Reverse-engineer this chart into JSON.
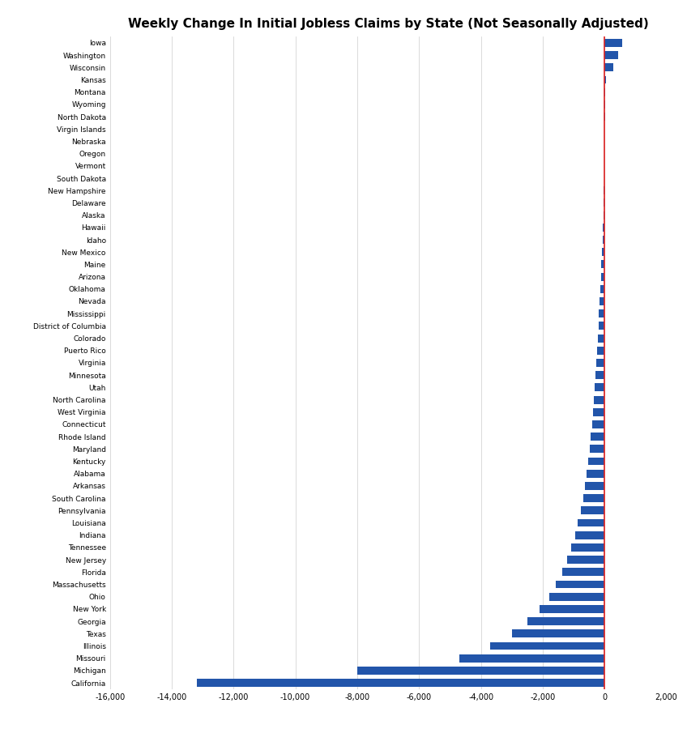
{
  "title": "Weekly Change In Initial Jobless Claims by State (Not Seasonally Adjusted)",
  "states": [
    "Iowa",
    "Washington",
    "Wisconsin",
    "Kansas",
    "Montana",
    "Wyoming",
    "North Dakota",
    "Virgin Islands",
    "Nebraska",
    "Oregon",
    "Vermont",
    "South Dakota",
    "New Hampshire",
    "Delaware",
    "Alaska",
    "Hawaii",
    "Idaho",
    "New Mexico",
    "Maine",
    "Arizona",
    "Oklahoma",
    "Nevada",
    "Mississippi",
    "District of Columbia",
    "Colorado",
    "Puerto Rico",
    "Virginia",
    "Minnesota",
    "Utah",
    "North Carolina",
    "West Virginia",
    "Connecticut",
    "Rhode Island",
    "Maryland",
    "Kentucky",
    "Alabama",
    "Arkansas",
    "South Carolina",
    "Pennsylvania",
    "Louisiana",
    "Indiana",
    "Tennessee",
    "New Jersey",
    "Florida",
    "Massachusetts",
    "Ohio",
    "New York",
    "Georgia",
    "Texas",
    "Illinois",
    "Missouri",
    "Michigan",
    "California"
  ],
  "values": [
    580,
    430,
    290,
    40,
    18,
    12,
    8,
    5,
    3,
    2,
    1,
    -10,
    -20,
    -30,
    -40,
    -55,
    -70,
    -85,
    -100,
    -120,
    -140,
    -160,
    -180,
    -200,
    -225,
    -250,
    -270,
    -295,
    -320,
    -350,
    -380,
    -410,
    -445,
    -485,
    -530,
    -580,
    -635,
    -700,
    -775,
    -860,
    -960,
    -1070,
    -1200,
    -1380,
    -1570,
    -1800,
    -2100,
    -2500,
    -3000,
    -3700,
    -4700,
    -8000,
    -13200
  ],
  "bar_color": "#2255aa",
  "vline_color": "#dd2222",
  "xlim": [
    -16000,
    2000
  ],
  "xticks": [
    -16000,
    -14000,
    -12000,
    -10000,
    -8000,
    -6000,
    -4000,
    -2000,
    0,
    2000
  ],
  "xtick_labels": [
    "-16,000",
    "-14,000",
    "-12,000",
    "-10,000",
    "-8,000",
    "-6,000",
    "-4,000",
    "-2,000",
    "0",
    "2,000"
  ],
  "grid_color": "#cccccc",
  "background_color": "#ffffff",
  "title_fontsize": 11,
  "label_fontsize": 6.5,
  "tick_fontsize": 7,
  "bar_height": 0.65
}
